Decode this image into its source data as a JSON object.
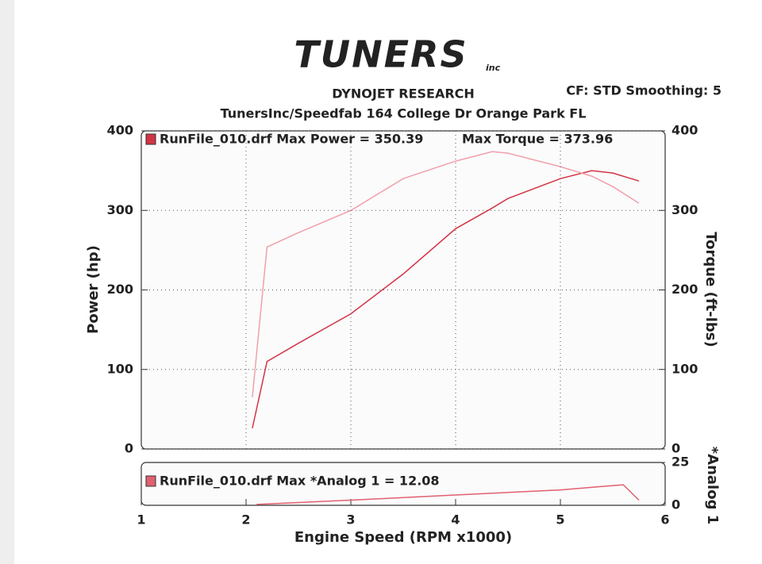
{
  "logo": {
    "text": "TUNERS",
    "suffix": "inc"
  },
  "header": {
    "company": "DYNOJET RESEARCH",
    "settings": "CF: STD  Smoothing: 5",
    "address": "TunersInc/Speedfab 164 College Dr Orange Park FL"
  },
  "chart_data": [
    {
      "type": "line",
      "legend_left": "RunFile_010.drf Max Power = 350.39",
      "legend_right": "Max Torque = 373.96",
      "ylabel": "Power (hp)",
      "y2label": "Torque (ft-lbs)",
      "xlim": [
        1,
        6
      ],
      "ylim": [
        0,
        400
      ],
      "yticks": [
        0,
        100,
        200,
        300,
        400
      ],
      "y2lim": [
        0,
        400
      ],
      "y2ticks": [
        0,
        100,
        200,
        300,
        400
      ],
      "grid": true,
      "x": [
        2.06,
        2.2,
        2.5,
        3,
        3.5,
        4,
        4.35,
        4.5,
        5,
        5.3,
        5.5,
        5.75
      ],
      "series": [
        {
          "color": "#d23445",
          "values": [
            26,
            110,
            133,
            170,
            220,
            277,
            303,
            315,
            340,
            350,
            347,
            337
          ]
        },
        {
          "color": "#f0a0aa",
          "axis": "y2",
          "values": [
            65,
            254,
            272,
            300,
            340,
            362,
            374,
            372,
            355,
            343,
            330,
            309
          ]
        }
      ]
    },
    {
      "type": "line",
      "legend_left": "RunFile_010.drf Max *Analog 1 = 12.08",
      "y2label": "*Analog 1",
      "xlabel": "Engine Speed (RPM x1000)",
      "xlim": [
        1,
        6
      ],
      "xticks": [
        1,
        2,
        3,
        4,
        5,
        6
      ],
      "y2lim": [
        0,
        25
      ],
      "y2ticks": [
        0,
        25
      ],
      "x": [
        2.1,
        3,
        4,
        5,
        5.6,
        5.75
      ],
      "series": [
        {
          "color": "#e06070",
          "axis": "y2",
          "values": [
            0.5,
            3,
            6,
            9,
            12,
            3
          ]
        }
      ]
    }
  ]
}
